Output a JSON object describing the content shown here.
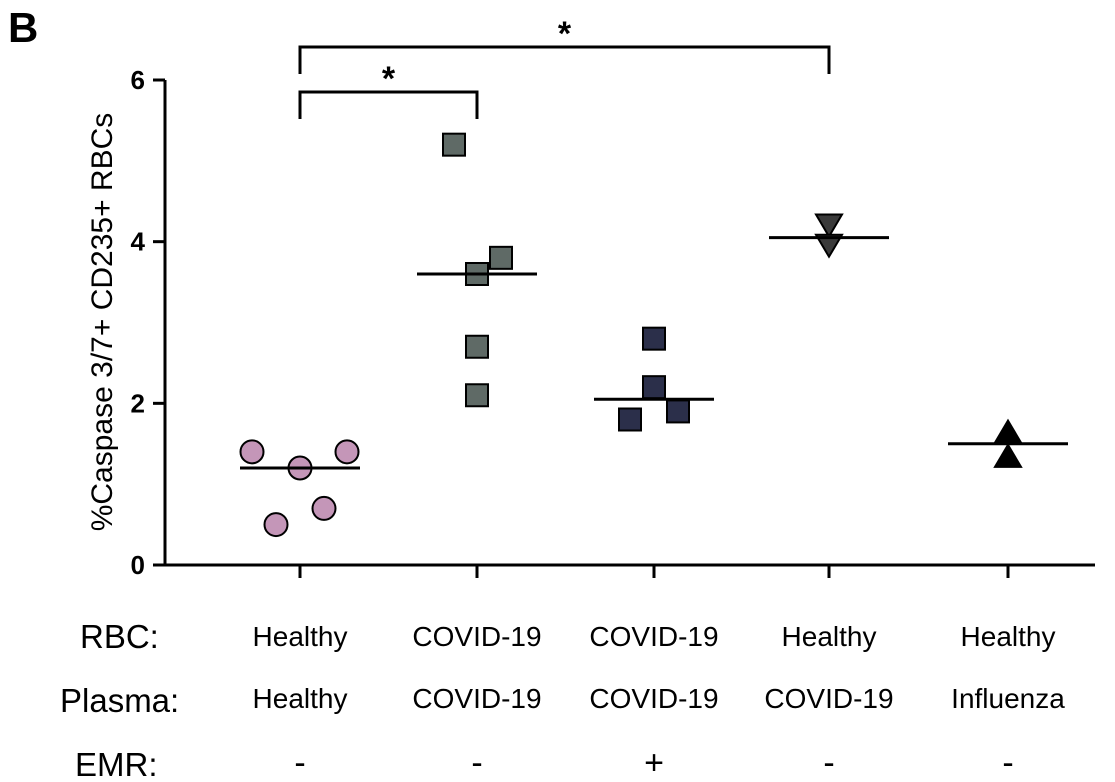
{
  "panel_label": "B",
  "chart_data": {
    "type": "scatter",
    "ylabel": "%Caspase 3/7+ CD235+ RBCs",
    "xlabel": "",
    "ylim": [
      0,
      6
    ],
    "yticks": [
      0,
      2,
      4,
      6
    ],
    "groups": [
      {
        "rbc": "Healthy",
        "plasma": "Healthy",
        "emr": "-",
        "marker": "circle",
        "color": "#c496b8",
        "values": [
          1.4,
          1.2,
          1.4,
          0.5,
          0.7
        ],
        "mean": 1.2
      },
      {
        "rbc": "COVID-19",
        "plasma": "COVID-19",
        "emr": "-",
        "marker": "square",
        "color": "#5f6a66",
        "values": [
          5.2,
          3.6,
          3.8,
          2.7,
          2.1
        ],
        "mean": 3.6
      },
      {
        "rbc": "COVID-19",
        "plasma": "COVID-19",
        "emr": "+",
        "marker": "square",
        "color": "#2b2f4a",
        "values": [
          2.8,
          2.2,
          1.8,
          1.9
        ],
        "mean": 2.05
      },
      {
        "rbc": "Healthy",
        "plasma": "COVID-19",
        "emr": "-",
        "marker": "triangle-down",
        "color": "#3a3a3a",
        "values": [
          4.2,
          3.95
        ],
        "mean": 4.05
      },
      {
        "rbc": "Healthy",
        "plasma": "Influenza",
        "emr": "-",
        "marker": "triangle-up",
        "color": "#000000",
        "values": [
          1.65,
          1.35
        ],
        "mean": 1.5
      }
    ],
    "significance": [
      {
        "from": 0,
        "to": 1,
        "label": "*"
      },
      {
        "from": 0,
        "to": 3,
        "label": "*"
      }
    ]
  },
  "row_labels": {
    "rbc": "RBC:",
    "plasma": "Plasma:",
    "emr": "EMR:"
  }
}
